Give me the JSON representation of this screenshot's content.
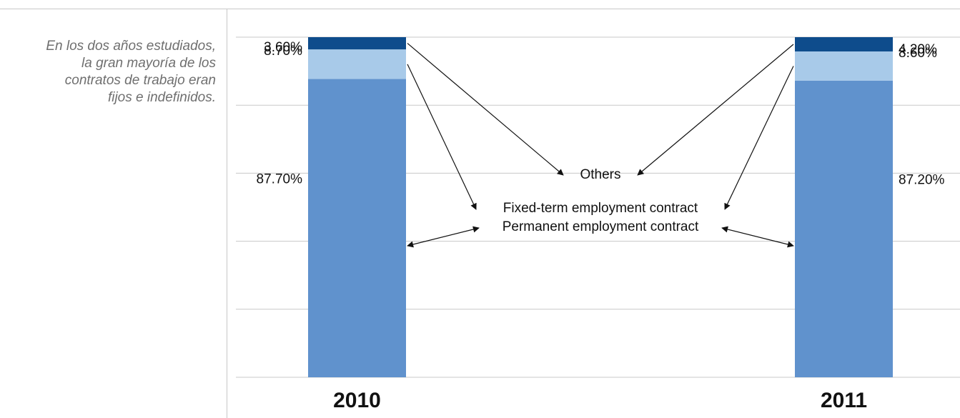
{
  "sidenote": {
    "lines": [
      "En los dos años estudiados,",
      "la gran mayoría de los",
      "contratos de trabajo eran",
      "fijos e indefinidos."
    ]
  },
  "chart_data": {
    "type": "bar",
    "stacked": true,
    "orientation": "vertical",
    "categories": [
      "2010",
      "2011"
    ],
    "series": [
      {
        "name": "Permanent employment contract",
        "values": [
          87.7,
          87.2
        ],
        "labels": [
          "87.70%",
          "87.20%"
        ],
        "color": "#6092cd"
      },
      {
        "name": "Fixed-term employment contract",
        "values": [
          8.7,
          8.6
        ],
        "labels": [
          "8.70%",
          "8.60%"
        ],
        "color": "#a8cae9"
      },
      {
        "name": "Others",
        "values": [
          3.6,
          4.2
        ],
        "labels": [
          "3.60%",
          "4.20%"
        ],
        "color": "#0e4c8c"
      }
    ],
    "ylim": [
      0,
      100
    ],
    "grid": true,
    "legend": "center, with arrows pointing to bar segments",
    "xlabel": "",
    "ylabel": ""
  },
  "colors": {
    "grid": "#c8c8c8",
    "rule": "#c8c8c8",
    "sidenote": "#6f6f6f",
    "text": "#111111"
  }
}
